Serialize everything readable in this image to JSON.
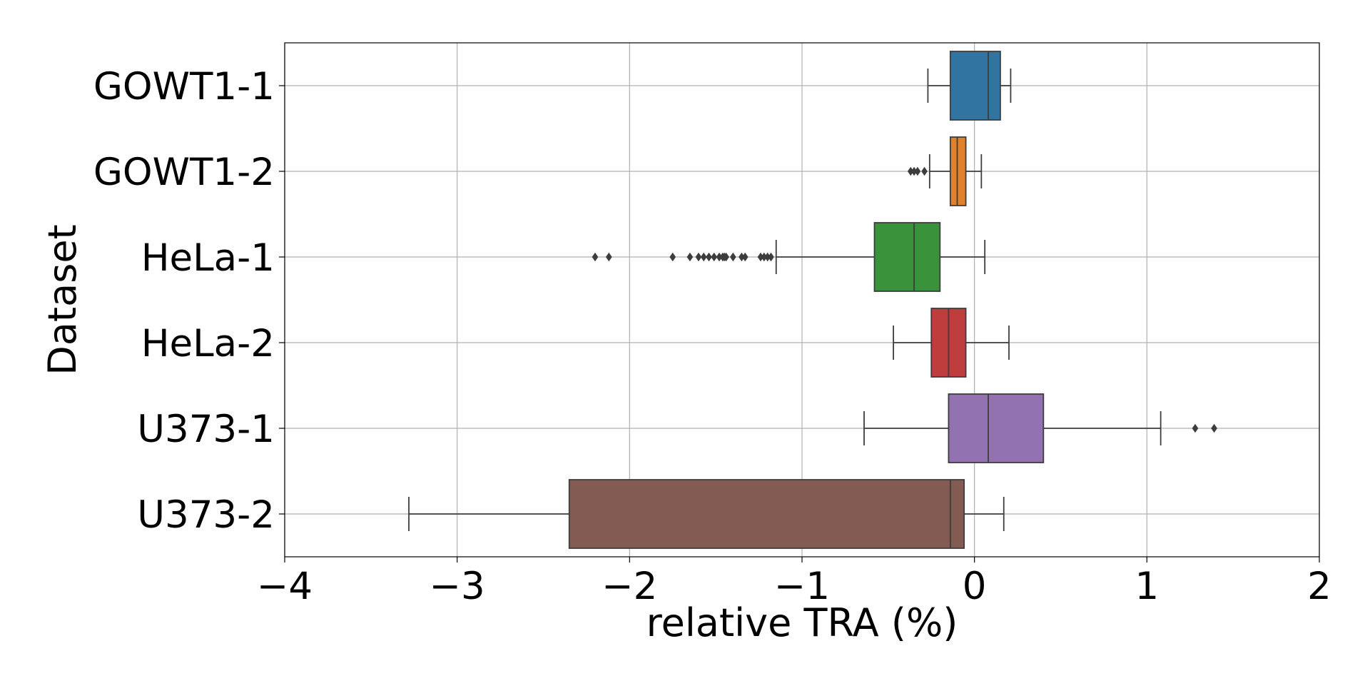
{
  "chart_data": {
    "type": "boxplot",
    "orientation": "horizontal",
    "title": "",
    "xlabel": "relative TRA (%)",
    "ylabel": "Dataset",
    "xlim": [
      -4,
      2
    ],
    "xticks": [
      -4,
      -3,
      -2,
      -1,
      0,
      1,
      2
    ],
    "xtick_labels": [
      "−4",
      "−3",
      "−2",
      "−1",
      "0",
      "1",
      "2"
    ],
    "grid": true,
    "categories": [
      "GOWT1-1",
      "GOWT1-2",
      "HeLa-1",
      "HeLa-2",
      "U373-1",
      "U373-2"
    ],
    "series": [
      {
        "name": "GOWT1-1",
        "color": "#3274a1",
        "whisker_low": -0.27,
        "q1": -0.14,
        "median": 0.08,
        "q3": 0.15,
        "whisker_high": 0.21,
        "outliers": []
      },
      {
        "name": "GOWT1-2",
        "color": "#e1812c",
        "whisker_low": -0.26,
        "q1": -0.14,
        "median": -0.1,
        "q3": -0.05,
        "whisker_high": 0.04,
        "outliers": [
          -0.37,
          -0.35,
          -0.33,
          -0.29
        ]
      },
      {
        "name": "HeLa-1",
        "color": "#3a923a",
        "whisker_low": -1.15,
        "q1": -0.58,
        "median": -0.35,
        "q3": -0.2,
        "whisker_high": 0.06,
        "outliers": [
          -2.2,
          -2.12,
          -1.75,
          -1.65,
          -1.6,
          -1.57,
          -1.54,
          -1.51,
          -1.48,
          -1.46,
          -1.45,
          -1.44,
          -1.4,
          -1.35,
          -1.33,
          -1.24,
          -1.22,
          -1.2,
          -1.18
        ]
      },
      {
        "name": "HeLa-2",
        "color": "#c03d3e",
        "whisker_low": -0.47,
        "q1": -0.25,
        "median": -0.15,
        "q3": -0.05,
        "whisker_high": 0.2,
        "outliers": []
      },
      {
        "name": "U373-1",
        "color": "#9372b2",
        "whisker_low": -0.64,
        "q1": -0.15,
        "median": 0.08,
        "q3": 0.4,
        "whisker_high": 1.08,
        "outliers": [
          1.28,
          1.39
        ]
      },
      {
        "name": "U373-2",
        "color": "#845b53",
        "whisker_low": -3.28,
        "q1": -2.35,
        "median": -0.14,
        "q3": -0.06,
        "whisker_high": 0.17,
        "outliers": []
      }
    ]
  }
}
